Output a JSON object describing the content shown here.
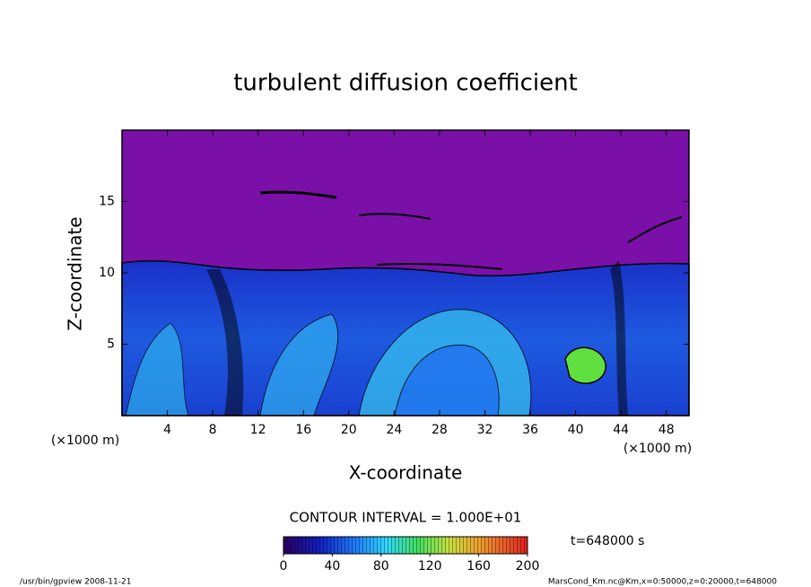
{
  "chart_data": {
    "type": "contour",
    "title": "turbulent diffusion coefficient",
    "xlabel": "X-coordinate",
    "ylabel": "Z-coordinate",
    "xunit": "(×1000 m)",
    "yunit": "(×1000 m)",
    "xlim": [
      0,
      50
    ],
    "xticks": [
      4,
      8,
      12,
      16,
      20,
      24,
      28,
      32,
      36,
      40,
      44,
      48
    ],
    "ylim": [
      0,
      20
    ],
    "yticks": [
      5,
      10,
      15
    ],
    "contour_interval": "CONTOUR INTERVAL = 1.000E+01",
    "colorbar": {
      "lim": [
        0,
        200
      ],
      "ticks": [
        0,
        40,
        80,
        120,
        160,
        200
      ]
    },
    "time_label": "t=648000 s",
    "footer_left": "/usr/bin/gpview   2008-11-21",
    "footer_right": "MarsCond_Km.nc@Km,x=0:50000,z=0:20000,t=648000"
  }
}
